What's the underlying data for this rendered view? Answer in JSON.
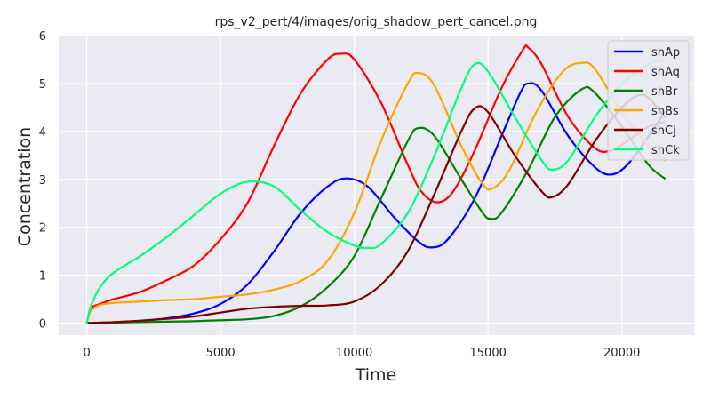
{
  "chart_data": {
    "type": "line",
    "title": "rps_v2_pert/4/images/orig_shadow_pert_cancel.png",
    "xlabel": "Time",
    "ylabel": "Concentration",
    "xlim": [
      -1050,
      22700
    ],
    "ylim": [
      -0.25,
      6.0
    ],
    "xticks": [
      0,
      5000,
      10000,
      15000,
      20000
    ],
    "yticks": [
      0,
      1,
      2,
      3,
      4,
      5,
      6
    ],
    "grid": true,
    "legend_position": "top-right",
    "series": [
      {
        "name": "shAp",
        "color": "#0000ff",
        "points": [
          [
            0,
            0
          ],
          [
            1000,
            0.02
          ],
          [
            2000,
            0.05
          ],
          [
            3000,
            0.1
          ],
          [
            4000,
            0.2
          ],
          [
            5000,
            0.4
          ],
          [
            6000,
            0.8
          ],
          [
            7000,
            1.5
          ],
          [
            8000,
            2.3
          ],
          [
            9000,
            2.85
          ],
          [
            9700,
            3.02
          ],
          [
            10500,
            2.85
          ],
          [
            11500,
            2.2
          ],
          [
            12400,
            1.7
          ],
          [
            12900,
            1.58
          ],
          [
            13500,
            1.75
          ],
          [
            14500,
            2.6
          ],
          [
            15500,
            3.9
          ],
          [
            16200,
            4.8
          ],
          [
            16500,
            5.0
          ],
          [
            17000,
            4.85
          ],
          [
            18000,
            3.9
          ],
          [
            19000,
            3.25
          ],
          [
            19600,
            3.1
          ],
          [
            20200,
            3.3
          ],
          [
            21000,
            3.9
          ],
          [
            21600,
            4.4
          ]
        ]
      },
      {
        "name": "shAq",
        "color": "#ff0000",
        "points": [
          [
            0,
            0
          ],
          [
            150,
            0.3
          ],
          [
            500,
            0.4
          ],
          [
            1000,
            0.5
          ],
          [
            2000,
            0.65
          ],
          [
            3000,
            0.9
          ],
          [
            4000,
            1.2
          ],
          [
            5000,
            1.75
          ],
          [
            6000,
            2.5
          ],
          [
            7000,
            3.7
          ],
          [
            8000,
            4.8
          ],
          [
            9000,
            5.5
          ],
          [
            9500,
            5.62
          ],
          [
            10000,
            5.5
          ],
          [
            11000,
            4.6
          ],
          [
            12000,
            3.3
          ],
          [
            12500,
            2.75
          ],
          [
            13100,
            2.52
          ],
          [
            13700,
            2.75
          ],
          [
            14500,
            3.6
          ],
          [
            15500,
            4.9
          ],
          [
            16300,
            5.7
          ],
          [
            16500,
            5.75
          ],
          [
            17000,
            5.4
          ],
          [
            18000,
            4.3
          ],
          [
            19000,
            3.65
          ],
          [
            19600,
            3.6
          ],
          [
            20200,
            3.8
          ],
          [
            21000,
            4.1
          ],
          [
            21600,
            4.2
          ]
        ]
      },
      {
        "name": "shBr",
        "color": "#008000",
        "points": [
          [
            0,
            0
          ],
          [
            1000,
            0.01
          ],
          [
            2000,
            0.02
          ],
          [
            3000,
            0.03
          ],
          [
            4000,
            0.04
          ],
          [
            5000,
            0.06
          ],
          [
            6000,
            0.08
          ],
          [
            7000,
            0.15
          ],
          [
            8000,
            0.35
          ],
          [
            9000,
            0.75
          ],
          [
            10000,
            1.4
          ],
          [
            11000,
            2.6
          ],
          [
            12000,
            3.8
          ],
          [
            12400,
            4.07
          ],
          [
            13000,
            3.9
          ],
          [
            14000,
            3.0
          ],
          [
            14800,
            2.3
          ],
          [
            15100,
            2.18
          ],
          [
            15500,
            2.3
          ],
          [
            16500,
            3.2
          ],
          [
            17500,
            4.3
          ],
          [
            18500,
            4.88
          ],
          [
            19000,
            4.8
          ],
          [
            20000,
            4.1
          ],
          [
            21000,
            3.3
          ],
          [
            21600,
            3.02
          ]
        ]
      },
      {
        "name": "shBs",
        "color": "#ffa500",
        "points": [
          [
            0,
            0
          ],
          [
            150,
            0.25
          ],
          [
            500,
            0.38
          ],
          [
            1000,
            0.42
          ],
          [
            2000,
            0.45
          ],
          [
            3000,
            0.48
          ],
          [
            4000,
            0.5
          ],
          [
            5000,
            0.55
          ],
          [
            6000,
            0.6
          ],
          [
            7000,
            0.7
          ],
          [
            8000,
            0.88
          ],
          [
            9000,
            1.3
          ],
          [
            10000,
            2.3
          ],
          [
            11000,
            3.8
          ],
          [
            12000,
            5.0
          ],
          [
            12400,
            5.22
          ],
          [
            13000,
            4.95
          ],
          [
            14000,
            3.7
          ],
          [
            14800,
            2.9
          ],
          [
            15200,
            2.82
          ],
          [
            15800,
            3.2
          ],
          [
            16800,
            4.4
          ],
          [
            17800,
            5.25
          ],
          [
            18500,
            5.43
          ],
          [
            19000,
            5.3
          ],
          [
            20000,
            4.4
          ],
          [
            21000,
            3.7
          ],
          [
            21600,
            3.4
          ]
        ]
      },
      {
        "name": "shCj",
        "color": "#800000",
        "points": [
          [
            0,
            0
          ],
          [
            1000,
            0.02
          ],
          [
            2000,
            0.05
          ],
          [
            3000,
            0.09
          ],
          [
            4000,
            0.14
          ],
          [
            5000,
            0.22
          ],
          [
            6000,
            0.3
          ],
          [
            7000,
            0.34
          ],
          [
            8000,
            0.36
          ],
          [
            9000,
            0.37
          ],
          [
            10000,
            0.45
          ],
          [
            11000,
            0.8
          ],
          [
            12000,
            1.5
          ],
          [
            13000,
            2.7
          ],
          [
            14000,
            4.0
          ],
          [
            14500,
            4.48
          ],
          [
            15000,
            4.4
          ],
          [
            16000,
            3.5
          ],
          [
            17000,
            2.75
          ],
          [
            17400,
            2.63
          ],
          [
            18000,
            2.9
          ],
          [
            19000,
            3.8
          ],
          [
            20000,
            4.5
          ],
          [
            20600,
            4.75
          ],
          [
            21000,
            4.7
          ],
          [
            21600,
            4.3
          ]
        ]
      },
      {
        "name": "shCk",
        "color": "#00ff7f",
        "points": [
          [
            0,
            0
          ],
          [
            150,
            0.35
          ],
          [
            500,
            0.75
          ],
          [
            1000,
            1.05
          ],
          [
            2000,
            1.4
          ],
          [
            3000,
            1.8
          ],
          [
            4000,
            2.25
          ],
          [
            5000,
            2.7
          ],
          [
            6000,
            2.95
          ],
          [
            7000,
            2.85
          ],
          [
            8000,
            2.35
          ],
          [
            9000,
            1.9
          ],
          [
            10000,
            1.62
          ],
          [
            10500,
            1.57
          ],
          [
            11000,
            1.65
          ],
          [
            12000,
            2.3
          ],
          [
            13000,
            3.5
          ],
          [
            14000,
            4.9
          ],
          [
            14500,
            5.4
          ],
          [
            15000,
            5.25
          ],
          [
            16000,
            4.3
          ],
          [
            17000,
            3.4
          ],
          [
            17400,
            3.2
          ],
          [
            18000,
            3.4
          ],
          [
            19000,
            4.3
          ],
          [
            20000,
            5.0
          ],
          [
            21000,
            5.4
          ],
          [
            21600,
            5.5
          ]
        ]
      }
    ]
  }
}
